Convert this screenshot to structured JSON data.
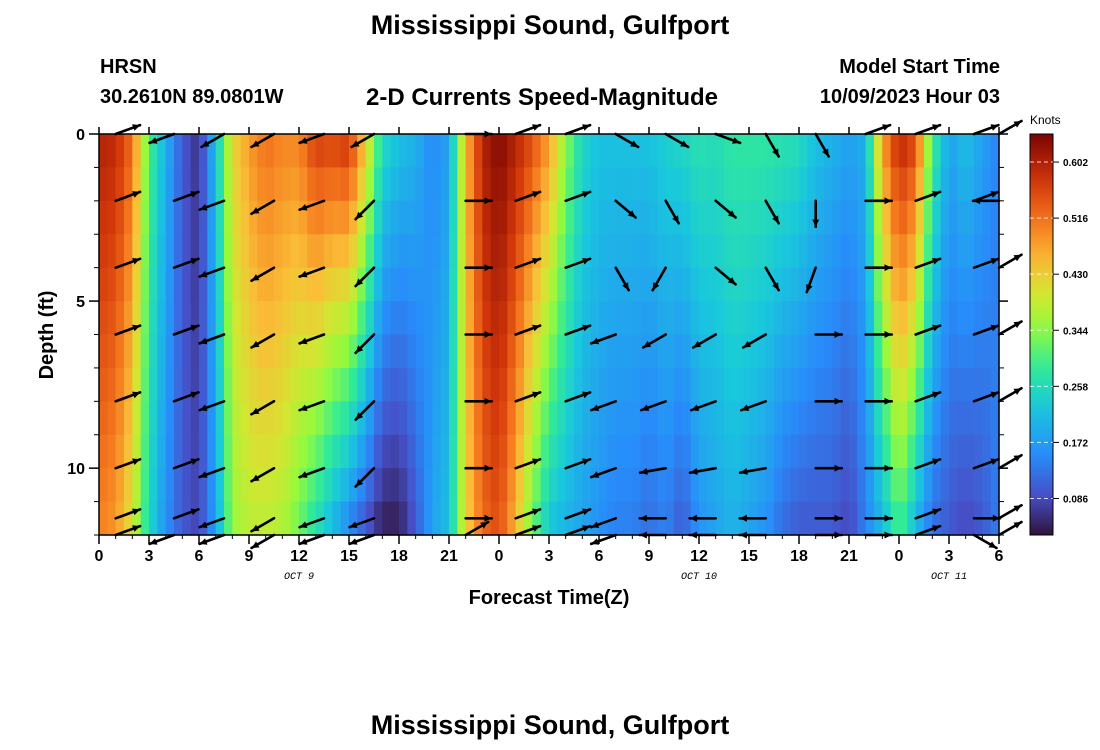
{
  "title": "Mississippi Sound, Gulfport",
  "station": "HRSN",
  "coords": "30.2610N  89.0801W",
  "subtitle": "2-D Currents Speed-Magnitude",
  "model_start_label": "Model Start Time",
  "model_start_value": "10/09/2023 Hour 03",
  "footer_title": "Mississippi Sound, Gulfport",
  "chart_data": {
    "type": "heatmap",
    "xlabel": "Forecast Time(Z)",
    "ylabel": "Depth (ft)",
    "x_tick_labels": [
      "0",
      "3",
      "6",
      "9",
      "12",
      "15",
      "18",
      "21",
      "0",
      "3",
      "6",
      "9",
      "12",
      "15",
      "18",
      "21",
      "0",
      "3",
      "6"
    ],
    "x_hours": [
      0,
      54
    ],
    "date_labels": [
      {
        "text": "OCT 9",
        "hour": 12
      },
      {
        "text": "OCT 10",
        "hour": 36
      },
      {
        "text": "OCT 11",
        "hour": 51
      }
    ],
    "y_ticks": [
      "0",
      "5",
      "10"
    ],
    "ylim": [
      0,
      12
    ],
    "y_inverted": true,
    "colorbar": {
      "label": "Knots",
      "ticks": [
        "0.602",
        "0.516",
        "0.430",
        "0.344",
        "0.258",
        "0.172",
        "0.086"
      ],
      "tick_values": [
        0.602,
        0.516,
        0.43,
        0.344,
        0.258,
        0.172,
        0.086
      ],
      "range": [
        0.03,
        0.645
      ],
      "colormap": "turbo"
    },
    "speed_profile_surface": [
      [
        0,
        0.6
      ],
      [
        1,
        0.59
      ],
      [
        2,
        0.52
      ],
      [
        3,
        0.3
      ],
      [
        4,
        0.2
      ],
      [
        5,
        0.1
      ],
      [
        6,
        0.06
      ],
      [
        7,
        0.22
      ],
      [
        8,
        0.42
      ],
      [
        9,
        0.48
      ],
      [
        10,
        0.52
      ],
      [
        11,
        0.5
      ],
      [
        12,
        0.5
      ],
      [
        13,
        0.57
      ],
      [
        14,
        0.56
      ],
      [
        15,
        0.58
      ],
      [
        16,
        0.44
      ],
      [
        17,
        0.26
      ],
      [
        18,
        0.22
      ],
      [
        19,
        0.2
      ],
      [
        20,
        0.15
      ],
      [
        21,
        0.18
      ],
      [
        22,
        0.45
      ],
      [
        23,
        0.6
      ],
      [
        24,
        0.64
      ],
      [
        25,
        0.6
      ],
      [
        26,
        0.55
      ],
      [
        27,
        0.48
      ],
      [
        28,
        0.35
      ],
      [
        29,
        0.25
      ],
      [
        30,
        0.22
      ],
      [
        31,
        0.22
      ],
      [
        32,
        0.22
      ],
      [
        33,
        0.22
      ],
      [
        34,
        0.24
      ],
      [
        35,
        0.25
      ],
      [
        36,
        0.27
      ],
      [
        37,
        0.26
      ],
      [
        38,
        0.28
      ],
      [
        39,
        0.28
      ],
      [
        40,
        0.28
      ],
      [
        41,
        0.27
      ],
      [
        42,
        0.26
      ],
      [
        43,
        0.22
      ],
      [
        44,
        0.2
      ],
      [
        45,
        0.18
      ],
      [
        46,
        0.2
      ],
      [
        47,
        0.48
      ],
      [
        48,
        0.6
      ],
      [
        49,
        0.56
      ],
      [
        50,
        0.3
      ],
      [
        51,
        0.18
      ],
      [
        52,
        0.22
      ],
      [
        53,
        0.18
      ],
      [
        54,
        0.14
      ]
    ],
    "speed_profile_bottom": [
      [
        0,
        0.5
      ],
      [
        1,
        0.48
      ],
      [
        2,
        0.4
      ],
      [
        3,
        0.25
      ],
      [
        4,
        0.16
      ],
      [
        5,
        0.1
      ],
      [
        6,
        0.08
      ],
      [
        7,
        0.18
      ],
      [
        8,
        0.35
      ],
      [
        9,
        0.38
      ],
      [
        10,
        0.38
      ],
      [
        11,
        0.37
      ],
      [
        12,
        0.32
      ],
      [
        13,
        0.26
      ],
      [
        14,
        0.2
      ],
      [
        15,
        0.14
      ],
      [
        16,
        0.09
      ],
      [
        17,
        0.04
      ],
      [
        18,
        0.04
      ],
      [
        19,
        0.1
      ],
      [
        20,
        0.18
      ],
      [
        21,
        0.22
      ],
      [
        22,
        0.42
      ],
      [
        23,
        0.52
      ],
      [
        24,
        0.55
      ],
      [
        25,
        0.45
      ],
      [
        26,
        0.32
      ],
      [
        27,
        0.22
      ],
      [
        28,
        0.2
      ],
      [
        29,
        0.18
      ],
      [
        30,
        0.16
      ],
      [
        31,
        0.14
      ],
      [
        32,
        0.14
      ],
      [
        33,
        0.12
      ],
      [
        34,
        0.14
      ],
      [
        35,
        0.1
      ],
      [
        36,
        0.16
      ],
      [
        37,
        0.18
      ],
      [
        38,
        0.2
      ],
      [
        39,
        0.18
      ],
      [
        40,
        0.16
      ],
      [
        41,
        0.12
      ],
      [
        42,
        0.1
      ],
      [
        43,
        0.1
      ],
      [
        44,
        0.1
      ],
      [
        45,
        0.08
      ],
      [
        46,
        0.14
      ],
      [
        47,
        0.2
      ],
      [
        48,
        0.3
      ],
      [
        49,
        0.2
      ],
      [
        50,
        0.12
      ],
      [
        51,
        0.1
      ],
      [
        52,
        0.08
      ],
      [
        53,
        0.1
      ],
      [
        54,
        0.14
      ]
    ],
    "vectors": [
      {
        "hour": 1,
        "angles": [
          20,
          20,
          20,
          20,
          20,
          20,
          20,
          20
        ]
      },
      {
        "hour": 4.5,
        "angles": [
          200,
          20,
          20,
          20,
          20,
          20,
          20,
          200
        ]
      },
      {
        "hour": 7.5,
        "angles": [
          210,
          200,
          200,
          200,
          200,
          200,
          200,
          200
        ]
      },
      {
        "hour": 10.5,
        "angles": [
          210,
          210,
          210,
          210,
          210,
          210,
          210,
          210
        ]
      },
      {
        "hour": 13.5,
        "angles": [
          200,
          200,
          200,
          200,
          200,
          200,
          200,
          200
        ]
      },
      {
        "hour": 16.5,
        "angles": [
          210,
          225,
          225,
          225,
          225,
          225,
          200,
          200
        ]
      },
      {
        "hour": 22,
        "angles": [
          0,
          0,
          0,
          0,
          0,
          0,
          0,
          30
        ]
      },
      {
        "hour": 25,
        "angles": [
          20,
          20,
          20,
          20,
          20,
          20,
          20,
          20
        ]
      },
      {
        "hour": 28,
        "angles": [
          20,
          20,
          20,
          20,
          20,
          20,
          20,
          20
        ]
      },
      {
        "hour": 31,
        "angles": [
          330,
          320,
          300,
          200,
          200,
          200,
          200,
          200
        ]
      },
      {
        "hour": 34,
        "angles": [
          330,
          300,
          240,
          210,
          200,
          190,
          180,
          180
        ]
      },
      {
        "hour": 37,
        "angles": [
          340,
          320,
          320,
          210,
          200,
          190,
          180,
          180
        ]
      },
      {
        "hour": 40,
        "angles": [
          300,
          300,
          300,
          210,
          200,
          190,
          180,
          180
        ]
      },
      {
        "hour": 43,
        "angles": [
          300,
          270,
          250,
          0,
          0,
          0,
          0,
          0
        ]
      },
      {
        "hour": 46,
        "angles": [
          20,
          0,
          0,
          0,
          0,
          0,
          0,
          0
        ]
      },
      {
        "hour": 49,
        "angles": [
          20,
          20,
          20,
          20,
          20,
          20,
          20,
          20
        ]
      },
      {
        "hour": 52.5,
        "angles": [
          20,
          20,
          20,
          20,
          20,
          20,
          0,
          330
        ]
      },
      {
        "hour": 54,
        "angles": [
          30,
          180,
          30,
          30,
          30,
          30,
          30,
          30
        ]
      }
    ]
  }
}
